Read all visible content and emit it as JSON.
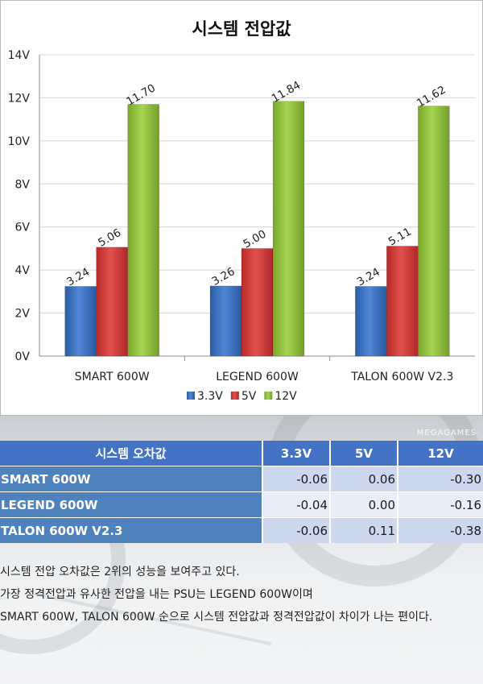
{
  "chart_data": {
    "type": "bar",
    "title": "시스템 전압값",
    "categories": [
      "SMART 600W",
      "LEGEND 600W",
      "TALON 600W V2.3"
    ],
    "series": [
      {
        "name": "3.3V",
        "values": [
          3.24,
          3.26,
          3.24
        ],
        "labels": [
          "3.24",
          "3.26",
          "3.24"
        ],
        "color": "#3d72c6"
      },
      {
        "name": "5V",
        "values": [
          5.06,
          5.0,
          5.11
        ],
        "labels": [
          "5.06",
          "5.00",
          "5.11"
        ],
        "color": "#d63a37"
      },
      {
        "name": "12V",
        "values": [
          11.7,
          11.84,
          11.62
        ],
        "labels": [
          "11.70",
          "11.84",
          "11.62"
        ],
        "color": "#8fc13a"
      }
    ],
    "yticks": [
      "0V",
      "2V",
      "4V",
      "6V",
      "8V",
      "10V",
      "12V",
      "14V"
    ],
    "ylim": [
      0,
      14
    ],
    "grid": true,
    "legend_position": "bottom"
  },
  "watermark": "MEGAGAMES",
  "error_table": {
    "headers": [
      "시스템 오차값",
      "3.3V",
      "5V",
      "12V"
    ],
    "rows": [
      {
        "name": "SMART 600W",
        "v33": "-0.06",
        "v5": "0.06",
        "v12": "-0.30"
      },
      {
        "name": "LEGEND 600W",
        "v33": "-0.04",
        "v5": "0.00",
        "v12": "-0.16"
      },
      {
        "name": "TALON 600W V2.3",
        "v33": "-0.06",
        "v5": "0.11",
        "v12": "-0.38"
      }
    ]
  },
  "article": {
    "p1": "시스템 전압 오차값은 2위의 성능을 보여주고 있다.",
    "p2": "가장 정격전압과 유사한 전압을 내는 PSU는 LEGEND 600W이며",
    "p3": "SMART 600W, TALON 600W 순으로 시스템 전압값과 정격전압값이 차이가 나는 편이다."
  }
}
